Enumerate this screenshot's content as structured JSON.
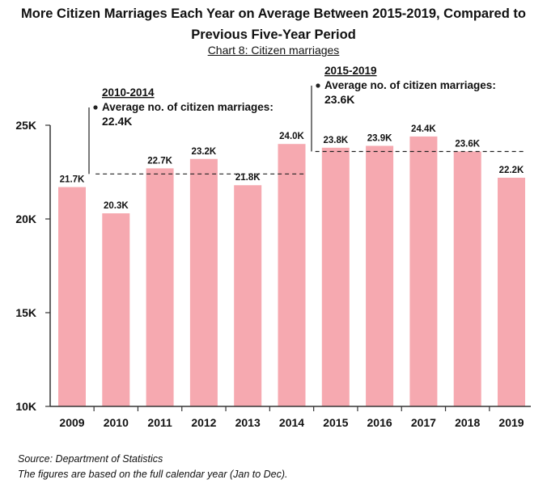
{
  "title_line1": "More Citizen Marriages Each Year on Average Between 2015-2019, Compared to",
  "title_line2": "Previous Five-Year Period",
  "subtitle": "Chart 8: Citizen marriages",
  "source": "Source: Department of Statistics",
  "note": "The figures are based on the full calendar year (Jan to Dec).",
  "colors": {
    "bar": "#f6a9b0",
    "axis": "#333333",
    "text": "#111111"
  },
  "chart_data": {
    "type": "bar",
    "categories": [
      "2009",
      "2010",
      "2011",
      "2012",
      "2013",
      "2014",
      "2015",
      "2016",
      "2017",
      "2018",
      "2019"
    ],
    "values": [
      21.7,
      20.3,
      22.7,
      23.2,
      21.8,
      24.0,
      23.8,
      23.9,
      24.4,
      23.6,
      22.2
    ],
    "data_labels": [
      "21.7K",
      "20.3K",
      "22.7K",
      "23.2K",
      "21.8K",
      "24.0K",
      "23.8K",
      "23.9K",
      "24.4K",
      "23.6K",
      "22.2K"
    ],
    "ylim": [
      10,
      25
    ],
    "yticks": [
      10,
      15,
      20,
      25
    ],
    "ytick_labels": [
      "10K",
      "15K",
      "20K",
      "25K"
    ],
    "grid": false,
    "annotations": [
      {
        "period": "2010-2014",
        "label": "Average no. of citizen marriages:",
        "value_text": "22.4K",
        "value": 22.4,
        "from_index": 1,
        "to_index": 5
      },
      {
        "period": "2015-2019",
        "label": "Average no. of citizen marriages:",
        "value_text": "23.6K",
        "value": 23.6,
        "from_index": 6,
        "to_index": 10
      }
    ]
  }
}
